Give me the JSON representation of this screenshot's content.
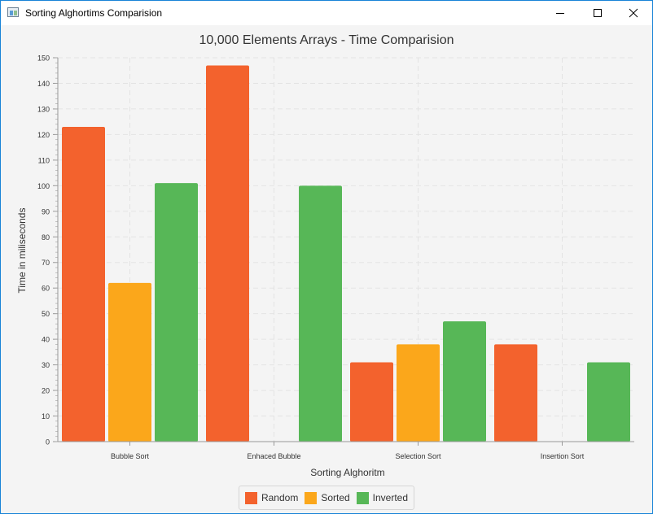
{
  "window": {
    "title": "Sorting Alghortims Comparision",
    "controls": {
      "minimize": "minimize-icon",
      "maximize": "maximize-icon",
      "close": "close-icon"
    }
  },
  "chart_data": {
    "type": "bar",
    "title": "10,000 Elements Arrays - Time Comparision",
    "xlabel": "Sorting Alghoritm",
    "ylabel": "Time in miliseconds",
    "ylim": [
      0,
      150
    ],
    "yticks": [
      0,
      10,
      20,
      30,
      40,
      50,
      60,
      70,
      80,
      90,
      100,
      110,
      120,
      130,
      140,
      150
    ],
    "grid": true,
    "legend_position": "bottom",
    "categories": [
      "Bubble Sort",
      "Enhaced Bubble",
      "Selection Sort",
      "Insertion Sort"
    ],
    "series": [
      {
        "name": "Random",
        "color": "#f3622d",
        "values": [
          123,
          147,
          31,
          38
        ]
      },
      {
        "name": "Sorted",
        "color": "#fba71b",
        "values": [
          62,
          0,
          38,
          0
        ]
      },
      {
        "name": "Inverted",
        "color": "#57b757",
        "values": [
          101,
          100,
          47,
          31
        ]
      }
    ]
  }
}
